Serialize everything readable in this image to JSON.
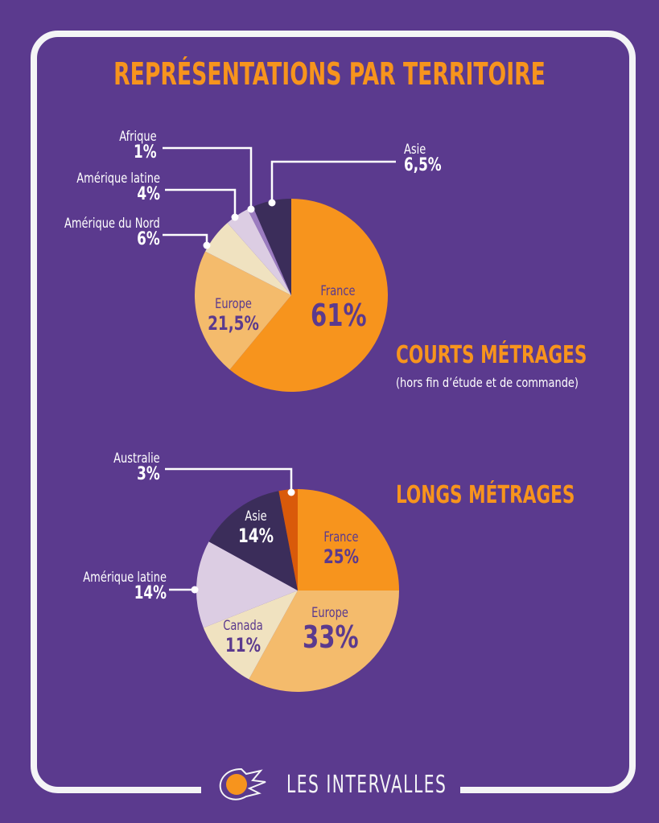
{
  "title": "REPRÉSENTATIONS PAR TERRITOIRE",
  "chart_data": [
    {
      "type": "pie",
      "title": "COURTS MÉTRAGES",
      "subtitle": "(hors fin d’étude et de commande)",
      "categories": [
        "France",
        "Europe",
        "Amérique du Nord",
        "Amérique latine",
        "Afrique",
        "Asie"
      ],
      "values": [
        61,
        21.5,
        6,
        4,
        1,
        6.5
      ],
      "labels": [
        "61%",
        "21,5%",
        "6%",
        "4%",
        "1%",
        "6,5%"
      ],
      "colors": [
        "#f7941d",
        "#f4bb6c",
        "#f0e2c0",
        "#dccde3",
        "#9b7cc0",
        "#3b2d5a"
      ]
    },
    {
      "type": "pie",
      "title": "LONGS MÉTRAGES",
      "categories": [
        "France",
        "Europe",
        "Canada",
        "Amérique latine",
        "Asie",
        "Australie"
      ],
      "values": [
        25,
        33,
        11,
        14,
        14,
        3
      ],
      "labels": [
        "25%",
        "33%",
        "11%",
        "14%",
        "14%",
        "3%"
      ],
      "colors": [
        "#f7941d",
        "#f4bb6c",
        "#f0e2c0",
        "#dccde3",
        "#3b2d5a",
        "#d95a0a"
      ]
    }
  ],
  "logo": {
    "text": "LES INTERVALLES"
  }
}
